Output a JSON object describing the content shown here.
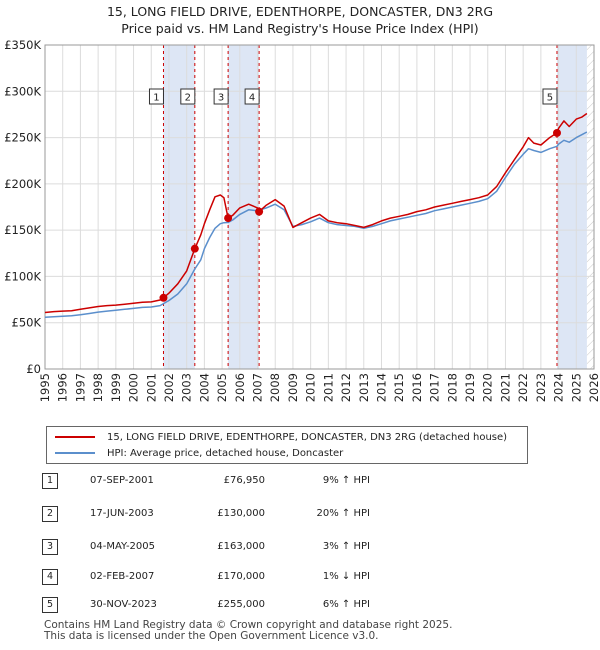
{
  "title_line1": "15, LONG FIELD DRIVE, EDENTHORPE, DONCASTER, DN3 2RG",
  "title_line2": "Price paid vs. HM Land Registry's House Price Index (HPI)",
  "chart_data": {
    "type": "line",
    "xlim": [
      1995,
      2026
    ],
    "ylim": [
      0,
      350000
    ],
    "yticks": [
      {
        "value": 0,
        "label": "£0"
      },
      {
        "value": 50000,
        "label": "£50K"
      },
      {
        "value": 100000,
        "label": "£100K"
      },
      {
        "value": 150000,
        "label": "£150K"
      },
      {
        "value": 200000,
        "label": "£200K"
      },
      {
        "value": 250000,
        "label": "£250K"
      },
      {
        "value": 300000,
        "label": "£300K"
      },
      {
        "value": 350000,
        "label": "£350K"
      }
    ],
    "xticks": [
      "1995",
      "1996",
      "1997",
      "1998",
      "1999",
      "2000",
      "2001",
      "2002",
      "2003",
      "2004",
      "2005",
      "2006",
      "2007",
      "2008",
      "2009",
      "2010",
      "2011",
      "2012",
      "2013",
      "2014",
      "2015",
      "2016",
      "2017",
      "2018",
      "2019",
      "2020",
      "2021",
      "2022",
      "2023",
      "2024",
      "2025",
      "2026"
    ],
    "grid": true,
    "colors": {
      "property": "#cc0000",
      "hpi": "#5b8fcc",
      "shade": "#dde6f5",
      "grid": "#dcdcdc"
    },
    "series": [
      {
        "name": "15, LONG FIELD DRIVE, EDENTHORPE, DONCASTER, DN3 2RG (detached house)",
        "x": [
          1995,
          1995.5,
          1996,
          1996.5,
          1997,
          1997.5,
          1998,
          1998.5,
          1999,
          1999.5,
          2000,
          2000.5,
          2001,
          2001.5,
          2001.69,
          2002,
          2002.5,
          2003,
          2003.46,
          2003.8,
          2004,
          2004.3,
          2004.6,
          2004.9,
          2005.1,
          2005.34,
          2005.6,
          2006,
          2006.5,
          2007,
          2007.09,
          2007.5,
          2008,
          2008.5,
          2009,
          2009.5,
          2010,
          2010.5,
          2011,
          2011.5,
          2012,
          2012.5,
          2013,
          2013.5,
          2014,
          2014.5,
          2015,
          2015.5,
          2016,
          2016.5,
          2017,
          2017.5,
          2018,
          2018.5,
          2019,
          2019.5,
          2020,
          2020.5,
          2021,
          2021.5,
          2022,
          2022.3,
          2022.6,
          2023,
          2023.5,
          2023.91,
          2024,
          2024.3,
          2024.6,
          2025,
          2025.3,
          2025.6
        ],
        "y": [
          61000,
          62000,
          62500,
          63000,
          64500,
          66000,
          67500,
          68500,
          69000,
          70000,
          71000,
          72000,
          72500,
          74500,
          76950,
          82000,
          92000,
          106000,
          130000,
          145000,
          157000,
          172000,
          186000,
          188000,
          185000,
          163000,
          166000,
          174000,
          178000,
          174000,
          170000,
          177000,
          183000,
          176000,
          153000,
          158000,
          163000,
          167000,
          160000,
          158000,
          157000,
          155000,
          153000,
          156000,
          160000,
          163000,
          165000,
          167000,
          170000,
          172000,
          175000,
          177000,
          179000,
          181000,
          183000,
          185000,
          188000,
          197000,
          212000,
          226000,
          240000,
          250000,
          244000,
          242000,
          250000,
          255000,
          260000,
          268000,
          262000,
          270000,
          272000,
          276000
        ]
      },
      {
        "name": "HPI: Average price, detached house, Doncaster",
        "x": [
          1995,
          1995.5,
          1996,
          1996.5,
          1997,
          1997.5,
          1998,
          1998.5,
          1999,
          1999.5,
          2000,
          2000.5,
          2001,
          2001.5,
          2001.69,
          2002,
          2002.5,
          2003,
          2003.46,
          2003.8,
          2004,
          2004.3,
          2004.6,
          2004.9,
          2005.1,
          2005.34,
          2005.6,
          2006,
          2006.5,
          2007,
          2007.09,
          2007.5,
          2008,
          2008.5,
          2009,
          2009.5,
          2010,
          2010.5,
          2011,
          2011.5,
          2012,
          2012.5,
          2013,
          2013.5,
          2014,
          2014.5,
          2015,
          2015.5,
          2016,
          2016.5,
          2017,
          2017.5,
          2018,
          2018.5,
          2019,
          2019.5,
          2020,
          2020.5,
          2021,
          2021.5,
          2022,
          2022.3,
          2022.6,
          2023,
          2023.5,
          2023.91,
          2024,
          2024.3,
          2024.6,
          2025,
          2025.3,
          2025.6
        ],
        "y": [
          56000,
          56500,
          57000,
          57500,
          58500,
          60000,
          61500,
          62500,
          63500,
          64500,
          65500,
          66500,
          67000,
          68500,
          70600,
          74000,
          81000,
          92000,
          108000,
          118000,
          130000,
          142000,
          152000,
          157000,
          158000,
          158300,
          161000,
          167000,
          172000,
          171000,
          171700,
          174000,
          178000,
          172000,
          154000,
          156000,
          159000,
          163000,
          158000,
          156000,
          155000,
          154000,
          152000,
          154000,
          157000,
          160000,
          162000,
          164000,
          166000,
          168000,
          171000,
          173000,
          175000,
          177000,
          179000,
          181000,
          184000,
          192000,
          207000,
          221000,
          232000,
          238000,
          236000,
          234000,
          238000,
          240600,
          243000,
          247000,
          245000,
          250000,
          253000,
          256000
        ]
      }
    ],
    "sales": [
      {
        "num": "1",
        "x": 2001.69,
        "y": 76950
      },
      {
        "num": "2",
        "x": 2003.46,
        "y": 130000
      },
      {
        "num": "3",
        "x": 2005.34,
        "y": 163000
      },
      {
        "num": "4",
        "x": 2007.09,
        "y": 170000
      },
      {
        "num": "5",
        "x": 2023.91,
        "y": 255000
      }
    ],
    "shaded_ranges": [
      [
        2001.69,
        2003.46
      ],
      [
        2005.34,
        2007.09
      ],
      [
        2023.91,
        2025.6
      ]
    ]
  },
  "legend": {
    "property_label": "15, LONG FIELD DRIVE, EDENTHORPE, DONCASTER, DN3 2RG (detached house)",
    "hpi_label": "HPI: Average price, detached house, Doncaster"
  },
  "sales_table": [
    {
      "num": "1",
      "date": "07-SEP-2001",
      "price": "£76,950",
      "hpi": "9% ↑ HPI"
    },
    {
      "num": "2",
      "date": "17-JUN-2003",
      "price": "£130,000",
      "hpi": "20% ↑ HPI"
    },
    {
      "num": "3",
      "date": "04-MAY-2005",
      "price": "£163,000",
      "hpi": "3% ↑ HPI"
    },
    {
      "num": "4",
      "date": "02-FEB-2007",
      "price": "£170,000",
      "hpi": "1% ↓ HPI"
    },
    {
      "num": "5",
      "date": "30-NOV-2023",
      "price": "£255,000",
      "hpi": "6% ↑ HPI"
    }
  ],
  "footer": {
    "line1": "Contains HM Land Registry data © Crown copyright and database right 2025.",
    "line2": "This data is licensed under the Open Government Licence v3.0."
  }
}
